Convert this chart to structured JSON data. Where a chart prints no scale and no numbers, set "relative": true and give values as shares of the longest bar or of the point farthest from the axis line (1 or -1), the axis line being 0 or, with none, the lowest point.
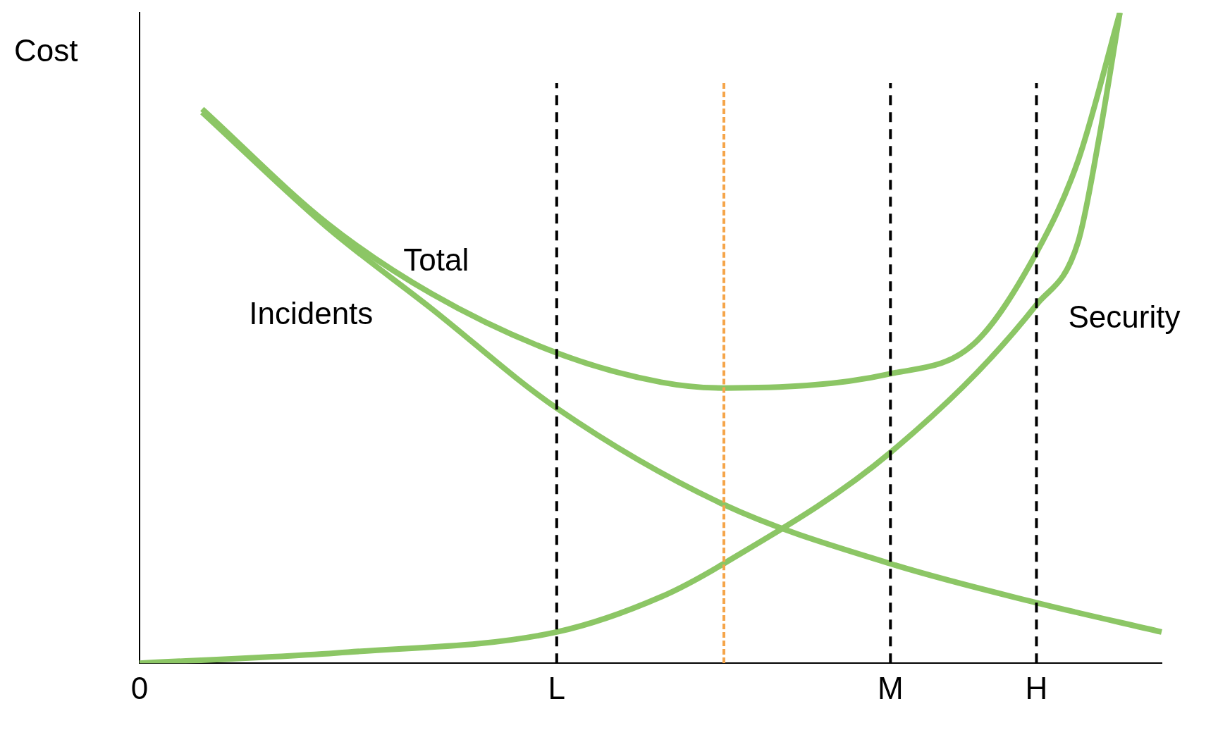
{
  "chart_data": {
    "type": "line",
    "relative": true,
    "ylabel": "Cost",
    "categories": [
      "0",
      null,
      null,
      null,
      null,
      null,
      null,
      null,
      null,
      null,
      null,
      null,
      null,
      null,
      null,
      null,
      null,
      null,
      null,
      null,
      "L",
      null,
      null,
      null,
      null,
      null,
      null,
      null,
      null,
      null,
      null,
      null,
      null,
      null,
      null,
      null,
      "M",
      null,
      null,
      null,
      null,
      null,
      null,
      "H",
      null,
      null,
      null,
      null,
      null,
      null
    ],
    "tick_labels": "x",
    "grid": "x",
    "legend": false,
    "marker": "none",
    "line_style": "solid",
    "series": [
      {
        "name": "Incidents",
        "color": "#8cc665",
        "values": [
          null,
          null,
          null,
          0.847,
          null,
          null,
          null,
          null,
          null,
          0.67,
          null,
          null,
          null,
          null,
          0.545,
          null,
          null,
          null,
          null,
          null,
          0.392,
          null,
          null,
          null,
          null,
          null,
          null,
          null,
          0.244,
          null,
          null,
          null,
          null,
          null,
          null,
          null,
          0.153,
          null,
          null,
          null,
          null,
          null,
          null,
          0.093,
          null,
          null,
          null,
          null,
          null,
          0.048
        ]
      },
      {
        "name": "Total",
        "color": "#8cc665",
        "values": [
          null,
          null,
          null,
          0.852,
          null,
          null,
          null,
          null,
          null,
          0.676,
          null,
          null,
          null,
          null,
          0.568,
          null,
          null,
          null,
          null,
          null,
          0.477,
          null,
          null,
          null,
          null,
          0.432,
          null,
          null,
          0.423,
          null,
          null,
          null,
          null,
          null,
          null,
          null,
          0.445,
          null,
          null,
          null,
          0.491,
          null,
          null,
          0.631,
          null,
          0.773,
          null,
          1.0,
          null,
          null
        ]
      },
      {
        "name": "Security",
        "color": "#8cc665",
        "values": [
          0,
          null,
          null,
          null,
          null,
          null,
          null,
          null,
          null,
          null,
          0.017,
          null,
          null,
          null,
          null,
          null,
          null,
          null,
          null,
          null,
          0.048,
          null,
          null,
          null,
          null,
          0.102,
          null,
          null,
          0.153,
          null,
          null,
          null,
          null,
          null,
          null,
          null,
          0.324,
          null,
          null,
          null,
          null,
          null,
          null,
          0.551,
          null,
          0.648,
          0.807,
          1.0,
          null,
          null
        ]
      }
    ]
  }
}
